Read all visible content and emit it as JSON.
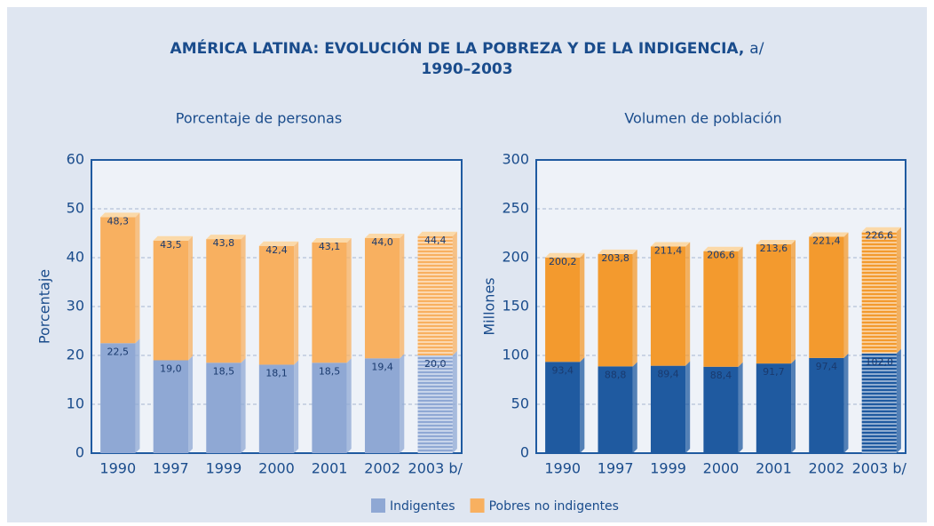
{
  "title": "AMÉRICA LATINA: EVOLUCIÓN DE LA POBREZA Y DE LA INDIGENCIA,",
  "title_note": "a/",
  "subtitle": "1990–2003",
  "chart_data": [
    {
      "type": "bar",
      "stacked": true,
      "title": "Porcentaje de personas",
      "ylabel": "Porcentaje",
      "categories": [
        "1990",
        "1997",
        "1999",
        "2000",
        "2001",
        "2002",
        "2003 b/"
      ],
      "series": [
        {
          "name": "Indigentes",
          "color": "#8fa8d4",
          "values": [
            22.5,
            19.0,
            18.5,
            18.1,
            18.5,
            19.4,
            20.0
          ],
          "value_labels": [
            "22,5",
            "19,0",
            "18,5",
            "18,1",
            "18,5",
            "19,4",
            "20,0"
          ]
        },
        {
          "name": "Pobres no indigentes",
          "color": "#f8b060",
          "values": [
            25.8,
            24.5,
            25.3,
            24.3,
            24.6,
            24.6,
            24.4
          ]
        }
      ],
      "totals": [
        48.3,
        43.5,
        43.8,
        42.4,
        43.1,
        44.0,
        44.4
      ],
      "total_labels": [
        "48,3",
        "43,5",
        "43,8",
        "42,4",
        "43,1",
        "44,0",
        "44,4"
      ],
      "ylim": [
        0,
        60
      ],
      "yticks": [
        0,
        10,
        20,
        30,
        40,
        50,
        60
      ],
      "grid": true
    },
    {
      "type": "bar",
      "stacked": true,
      "title": "Volumen de población",
      "ylabel": "Millones",
      "categories": [
        "1990",
        "1997",
        "1999",
        "2000",
        "2001",
        "2002",
        "2003 b/"
      ],
      "series": [
        {
          "color": "#1f5aa0",
          "values": [
            93.4,
            88.8,
            89.4,
            88.4,
            91.7,
            97.4,
            102.0
          ],
          "value_labels": [
            "93,4",
            "88,8",
            "89,4",
            "88,4",
            "91,7",
            "97,4",
            "102,0"
          ]
        },
        {
          "color": "#f39a2e",
          "values": [
            106.8,
            115.0,
            122.0,
            118.2,
            121.9,
            124.0,
            124.6
          ]
        }
      ],
      "totals": [
        200.2,
        203.8,
        211.4,
        206.6,
        213.6,
        221.4,
        226.6
      ],
      "total_labels": [
        "200,2",
        "203,8",
        "211,4",
        "206,6",
        "213,6",
        "221,4",
        "226,6"
      ],
      "ylim": [
        0,
        300
      ],
      "yticks": [
        0,
        50,
        100,
        150,
        200,
        250,
        300
      ],
      "grid": true
    }
  ]
}
